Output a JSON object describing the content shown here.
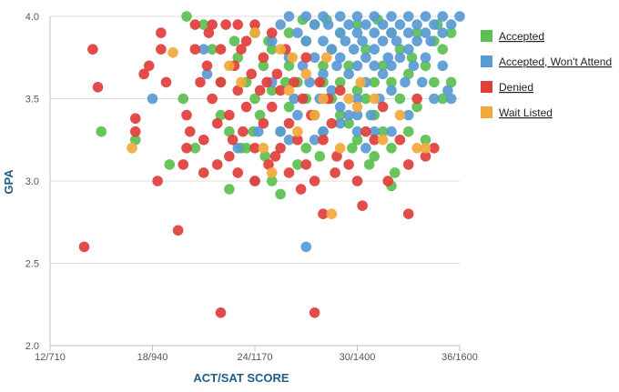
{
  "chart_data": {
    "type": "scatter",
    "xlabel": "ACT/SAT SCORE",
    "ylabel": "GPA",
    "x_tick_labels": [
      "12/710",
      "18/940",
      "24/1170",
      "30/1400",
      "36/1600"
    ],
    "x_ticks": [
      12,
      18,
      24,
      30,
      36
    ],
    "xlim": [
      12,
      36
    ],
    "ylim": [
      2.0,
      4.0
    ],
    "y_ticks": [
      2.0,
      2.5,
      3.0,
      3.5,
      4.0
    ],
    "y_tick_labels": [
      "2.0",
      "2.5",
      "3.0",
      "3.5",
      "4.0"
    ],
    "grid": true,
    "legend_position": "right",
    "series": [
      {
        "name": "Accepted",
        "color": "#5cbf50",
        "points": [
          [
            15,
            3.3
          ],
          [
            17,
            3.25
          ],
          [
            19,
            3.1
          ],
          [
            20,
            4.0
          ],
          [
            19.8,
            3.5
          ],
          [
            20.5,
            3.2
          ],
          [
            21,
            3.95
          ],
          [
            21.5,
            3.8
          ],
          [
            22,
            3.6
          ],
          [
            22,
            3.4
          ],
          [
            22.5,
            3.3
          ],
          [
            22.8,
            3.85
          ],
          [
            23,
            3.75
          ],
          [
            23.2,
            3.2
          ],
          [
            22.5,
            2.95
          ],
          [
            23.5,
            3.6
          ],
          [
            23.5,
            3.2
          ],
          [
            24,
            3.9
          ],
          [
            24,
            3.5
          ],
          [
            24.3,
            3.4
          ],
          [
            24.5,
            3.7
          ],
          [
            24.6,
            3.15
          ],
          [
            25,
            3.0
          ],
          [
            25,
            3.8
          ],
          [
            25,
            3.55
          ],
          [
            25.5,
            3.3
          ],
          [
            25.5,
            2.92
          ],
          [
            26,
            3.7
          ],
          [
            26,
            3.45
          ],
          [
            26,
            3.9
          ],
          [
            26.5,
            3.6
          ],
          [
            26.5,
            3.1
          ],
          [
            27,
            3.2
          ],
          [
            27,
            3.85
          ],
          [
            27,
            3.5
          ],
          [
            27.5,
            3.4
          ],
          [
            27.5,
            3.95
          ],
          [
            28,
            3.7
          ],
          [
            28,
            3.6
          ],
          [
            28,
            3.3
          ],
          [
            28.5,
            3.5
          ],
          [
            28.5,
            3.8
          ],
          [
            29,
            3.4
          ],
          [
            29,
            3.9
          ],
          [
            29,
            3.6
          ],
          [
            29.5,
            3.35
          ],
          [
            29.5,
            3.7
          ],
          [
            30,
            3.55
          ],
          [
            30,
            3.25
          ],
          [
            30,
            3.95
          ],
          [
            30.5,
            3.5
          ],
          [
            30.5,
            3.8
          ],
          [
            31,
            3.4
          ],
          [
            31,
            3.6
          ],
          [
            31,
            3.15
          ],
          [
            31.5,
            3.3
          ],
          [
            31.5,
            3.7
          ],
          [
            32,
            3.2
          ],
          [
            32,
            3.6
          ],
          [
            32,
            3.9
          ],
          [
            32,
            2.97
          ],
          [
            32.5,
            3.5
          ],
          [
            32.5,
            3.8
          ],
          [
            33,
            3.3
          ],
          [
            33,
            3.65
          ],
          [
            33.5,
            3.45
          ],
          [
            33.5,
            3.9
          ],
          [
            34,
            3.25
          ],
          [
            34,
            3.7
          ],
          [
            34.5,
            3.6
          ],
          [
            34.5,
            3.85
          ],
          [
            35,
            3.8
          ],
          [
            35,
            3.5
          ],
          [
            35.5,
            3.9
          ],
          [
            35.5,
            3.6
          ],
          [
            26.8,
            3.98
          ],
          [
            28.2,
            3.98
          ],
          [
            31.2,
            3.98
          ],
          [
            33.2,
            3.75
          ],
          [
            34.7,
            3.95
          ],
          [
            32.2,
            3.05
          ],
          [
            30.7,
            3.1
          ],
          [
            29.7,
            3.2
          ],
          [
            25.8,
            3.6
          ],
          [
            24.8,
            3.85
          ],
          [
            23.9,
            3.3
          ],
          [
            27.8,
            3.15
          ]
        ]
      },
      {
        "name": "Accepted, Won't Attend",
        "color": "#5a9bd4",
        "points": [
          [
            18,
            3.5
          ],
          [
            21,
            3.8
          ],
          [
            21.2,
            3.65
          ],
          [
            23,
            3.2
          ],
          [
            24,
            3.0
          ],
          [
            25,
            3.85
          ],
          [
            25,
            3.6
          ],
          [
            25.5,
            3.95
          ],
          [
            26,
            4.0
          ],
          [
            26,
            3.75
          ],
          [
            26.3,
            3.5
          ],
          [
            26.5,
            3.9
          ],
          [
            26.8,
            3.7
          ],
          [
            27,
            4.0
          ],
          [
            27,
            3.85
          ],
          [
            27.2,
            3.6
          ],
          [
            27.5,
            3.95
          ],
          [
            27.5,
            3.75
          ],
          [
            27.8,
            3.5
          ],
          [
            28,
            4.0
          ],
          [
            28,
            3.85
          ],
          [
            28,
            3.65
          ],
          [
            28.3,
            3.95
          ],
          [
            28.5,
            3.8
          ],
          [
            28.5,
            3.55
          ],
          [
            28.8,
            3.7
          ],
          [
            29,
            4.0
          ],
          [
            29,
            3.9
          ],
          [
            29,
            3.75
          ],
          [
            29,
            3.45
          ],
          [
            29.3,
            3.85
          ],
          [
            29.5,
            3.95
          ],
          [
            29.5,
            3.65
          ],
          [
            29.5,
            3.4
          ],
          [
            29.8,
            3.8
          ],
          [
            30,
            4.0
          ],
          [
            30,
            3.9
          ],
          [
            30,
            3.7
          ],
          [
            30,
            3.5
          ],
          [
            30,
            3.3
          ],
          [
            30.3,
            3.85
          ],
          [
            30.5,
            3.95
          ],
          [
            30.5,
            3.75
          ],
          [
            30.5,
            3.6
          ],
          [
            30.8,
            3.4
          ],
          [
            31,
            4.0
          ],
          [
            31,
            3.9
          ],
          [
            31,
            3.8
          ],
          [
            31,
            3.7
          ],
          [
            31.3,
            3.5
          ],
          [
            31.5,
            3.95
          ],
          [
            31.5,
            3.85
          ],
          [
            31.5,
            3.65
          ],
          [
            31.8,
            3.75
          ],
          [
            32,
            4.0
          ],
          [
            32,
            3.9
          ],
          [
            32,
            3.7
          ],
          [
            32,
            3.55
          ],
          [
            32.3,
            3.85
          ],
          [
            32.5,
            3.95
          ],
          [
            32.5,
            3.75
          ],
          [
            32.8,
            3.6
          ],
          [
            33,
            4.0
          ],
          [
            33,
            3.9
          ],
          [
            33,
            3.8
          ],
          [
            33.3,
            3.7
          ],
          [
            33.5,
            3.95
          ],
          [
            33.5,
            3.85
          ],
          [
            33.8,
            3.6
          ],
          [
            34,
            4.0
          ],
          [
            34,
            3.9
          ],
          [
            34,
            3.75
          ],
          [
            34.3,
            3.85
          ],
          [
            34.5,
            3.95
          ],
          [
            34.5,
            3.5
          ],
          [
            35,
            4.0
          ],
          [
            35,
            3.9
          ],
          [
            35,
            3.7
          ],
          [
            35.3,
            3.55
          ],
          [
            35.5,
            3.95
          ],
          [
            35.5,
            3.5
          ],
          [
            36,
            4.0
          ],
          [
            27,
            2.6
          ],
          [
            30,
            3.4
          ],
          [
            31,
            3.3
          ],
          [
            29,
            3.35
          ],
          [
            33,
            3.4
          ],
          [
            28,
            3.3
          ],
          [
            32,
            3.3
          ],
          [
            26.5,
            3.4
          ],
          [
            25.5,
            3.3
          ],
          [
            30.5,
            3.2
          ],
          [
            26,
            3.25
          ],
          [
            27.5,
            3.25
          ],
          [
            24.2,
            3.3
          ]
        ]
      },
      {
        "name": "Denied",
        "color": "#e0403c",
        "points": [
          [
            14,
            2.6
          ],
          [
            14.5,
            3.8
          ],
          [
            14.8,
            3.57
          ],
          [
            17,
            3.38
          ],
          [
            17,
            3.3
          ],
          [
            17.5,
            3.65
          ],
          [
            17.8,
            3.7
          ],
          [
            18.3,
            3.0
          ],
          [
            18.5,
            3.9
          ],
          [
            18.5,
            3.8
          ],
          [
            18.8,
            3.6
          ],
          [
            19.5,
            2.7
          ],
          [
            19.8,
            3.1
          ],
          [
            20,
            3.2
          ],
          [
            20,
            3.4
          ],
          [
            20.2,
            3.3
          ],
          [
            20.5,
            3.8
          ],
          [
            20.5,
            3.95
          ],
          [
            20.8,
            3.6
          ],
          [
            21,
            3.05
          ],
          [
            21,
            3.25
          ],
          [
            21.2,
            3.7
          ],
          [
            21.5,
            3.95
          ],
          [
            21.5,
            3.5
          ],
          [
            21.8,
            3.35
          ],
          [
            21.8,
            3.1
          ],
          [
            22,
            3.8
          ],
          [
            22,
            3.6
          ],
          [
            22,
            2.2
          ],
          [
            22.3,
            3.95
          ],
          [
            22.5,
            3.4
          ],
          [
            22.5,
            3.15
          ],
          [
            22.8,
            3.7
          ],
          [
            23,
            3.95
          ],
          [
            23,
            3.55
          ],
          [
            23,
            3.05
          ],
          [
            23.3,
            3.3
          ],
          [
            23.5,
            3.85
          ],
          [
            23.5,
            3.45
          ],
          [
            23.8,
            3.65
          ],
          [
            24,
            3.95
          ],
          [
            24,
            3.2
          ],
          [
            24,
            3.0
          ],
          [
            24.3,
            3.55
          ],
          [
            24.5,
            3.75
          ],
          [
            24.5,
            3.35
          ],
          [
            24.8,
            3.1
          ],
          [
            25,
            3.9
          ],
          [
            25,
            3.45
          ],
          [
            25.3,
            3.65
          ],
          [
            25.5,
            3.2
          ],
          [
            25.5,
            3.55
          ],
          [
            25.8,
            3.8
          ],
          [
            26,
            3.35
          ],
          [
            26,
            3.05
          ],
          [
            26.3,
            3.6
          ],
          [
            26.5,
            3.25
          ],
          [
            26.8,
            3.5
          ],
          [
            27,
            3.1
          ],
          [
            27,
            3.75
          ],
          [
            27.3,
            3.4
          ],
          [
            27.5,
            3.0
          ],
          [
            27.5,
            2.2
          ],
          [
            27.8,
            3.6
          ],
          [
            28,
            3.25
          ],
          [
            28,
            2.8
          ],
          [
            28.3,
            3.5
          ],
          [
            28.5,
            3.35
          ],
          [
            28.8,
            3.15
          ],
          [
            29,
            3.55
          ],
          [
            29.5,
            3.1
          ],
          [
            30,
            3.0
          ],
          [
            30.3,
            2.85
          ],
          [
            30.5,
            3.3
          ],
          [
            31,
            3.25
          ],
          [
            31.5,
            3.45
          ],
          [
            32.5,
            3.25
          ],
          [
            33,
            3.1
          ],
          [
            33,
            2.8
          ],
          [
            33.5,
            3.5
          ],
          [
            34,
            3.15
          ],
          [
            34.5,
            3.2
          ],
          [
            23.2,
            3.8
          ],
          [
            22.7,
            3.25
          ],
          [
            26.7,
            2.95
          ],
          [
            28.7,
            3.05
          ],
          [
            31.8,
            3.0
          ],
          [
            24.7,
            3.6
          ],
          [
            25.2,
            3.15
          ],
          [
            21.3,
            3.9
          ]
        ]
      },
      {
        "name": "Wait Listed",
        "color": "#f2a93b",
        "points": [
          [
            16.8,
            3.2
          ],
          [
            19.2,
            3.78
          ],
          [
            22.5,
            3.7
          ],
          [
            23.2,
            3.6
          ],
          [
            24,
            3.9
          ],
          [
            25,
            3.05
          ],
          [
            25.5,
            3.8
          ],
          [
            26,
            3.55
          ],
          [
            26.5,
            3.3
          ],
          [
            27,
            3.65
          ],
          [
            27.5,
            3.4
          ],
          [
            28,
            3.5
          ],
          [
            28.5,
            2.8
          ],
          [
            29,
            3.2
          ],
          [
            29.5,
            3.5
          ],
          [
            30,
            3.45
          ],
          [
            31,
            3.5
          ],
          [
            31.5,
            3.25
          ],
          [
            32.5,
            3.4
          ],
          [
            33.5,
            3.2
          ],
          [
            34,
            3.2
          ],
          [
            24.5,
            3.2
          ],
          [
            26.2,
            3.75
          ],
          [
            28.2,
            3.75
          ],
          [
            30.2,
            3.6
          ]
        ]
      }
    ]
  }
}
